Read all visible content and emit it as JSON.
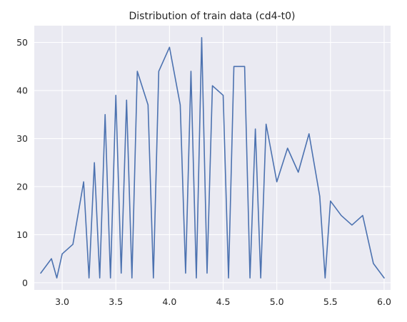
{
  "chart_data": {
    "type": "line",
    "title": "Distribution of train data (cd4-t0)",
    "xlabel": "",
    "ylabel": "",
    "xlim": [
      2.74,
      6.06
    ],
    "ylim": [
      -1.5,
      53.5
    ],
    "x_ticks": [
      3.0,
      3.5,
      4.0,
      4.5,
      5.0,
      5.5,
      6.0
    ],
    "x_tick_labels": [
      "3.0",
      "3.5",
      "4.0",
      "4.5",
      "5.0",
      "5.5",
      "6.0"
    ],
    "y_ticks": [
      0,
      10,
      20,
      30,
      40,
      50
    ],
    "y_tick_labels": [
      "0",
      "10",
      "20",
      "30",
      "40",
      "50"
    ],
    "grid": true,
    "legend": false,
    "style": {
      "background": "#eaeaf2",
      "grid_color": "#ffffff",
      "line_color": "#4c72b0"
    },
    "series": [
      {
        "x": [
          2.8,
          2.9,
          2.95,
          3.0,
          3.1,
          3.2,
          3.25,
          3.3,
          3.35,
          3.4,
          3.45,
          3.5,
          3.55,
          3.6,
          3.65,
          3.7,
          3.8,
          3.85,
          3.9,
          4.0,
          4.1,
          4.15,
          4.2,
          4.25,
          4.3,
          4.35,
          4.4,
          4.5,
          4.55,
          4.6,
          4.7,
          4.75,
          4.8,
          4.85,
          4.9,
          5.0,
          5.1,
          5.2,
          5.3,
          5.4,
          5.45,
          5.5,
          5.6,
          5.7,
          5.8,
          5.9,
          6.0
        ],
        "y": [
          2,
          5,
          1,
          6,
          8,
          21,
          1,
          25,
          1,
          35,
          1,
          39,
          2,
          38,
          1,
          44,
          37,
          1,
          44,
          49,
          37,
          2,
          44,
          1,
          51,
          2,
          41,
          39,
          1,
          45,
          45,
          1,
          32,
          1,
          33,
          21,
          28,
          23,
          31,
          18,
          1,
          17,
          14,
          12,
          14,
          4,
          1
        ]
      }
    ]
  }
}
